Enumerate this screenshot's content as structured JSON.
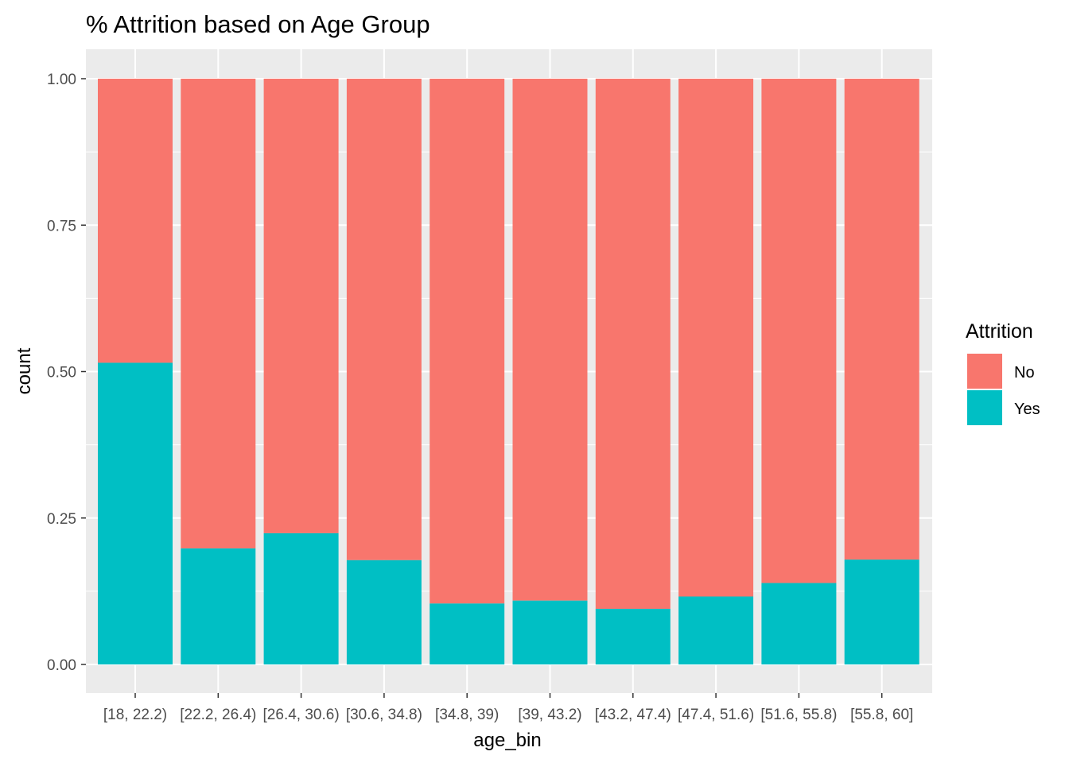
{
  "chart_data": {
    "type": "bar",
    "stacked": "fill",
    "title": "% Attrition based on Age Group",
    "xlabel": "age_bin",
    "ylabel": "count",
    "ylim": [
      0,
      1
    ],
    "yticks": [
      "0.00",
      "0.25",
      "0.50",
      "0.75",
      "1.00"
    ],
    "categories": [
      "[18, 22.2)",
      "[22.2, 26.4)",
      "[26.4, 30.6)",
      "[30.6, 34.8)",
      "[34.8, 39)",
      "[39, 43.2)",
      "[43.2, 47.4)",
      "[47.4, 51.6)",
      "[51.6, 55.8)",
      "[55.8, 60]"
    ],
    "legend": {
      "title": "Attrition",
      "position": "right"
    },
    "series": [
      {
        "name": "No",
        "color": "#F8766D",
        "values": [
          0.485,
          0.802,
          0.776,
          0.822,
          0.896,
          0.891,
          0.905,
          0.884,
          0.861,
          0.821
        ]
      },
      {
        "name": "Yes",
        "color": "#00BFC4",
        "values": [
          0.515,
          0.198,
          0.224,
          0.178,
          0.104,
          0.109,
          0.095,
          0.116,
          0.139,
          0.179
        ]
      }
    ],
    "grid": true,
    "panel_background": "#EBEBEB"
  }
}
